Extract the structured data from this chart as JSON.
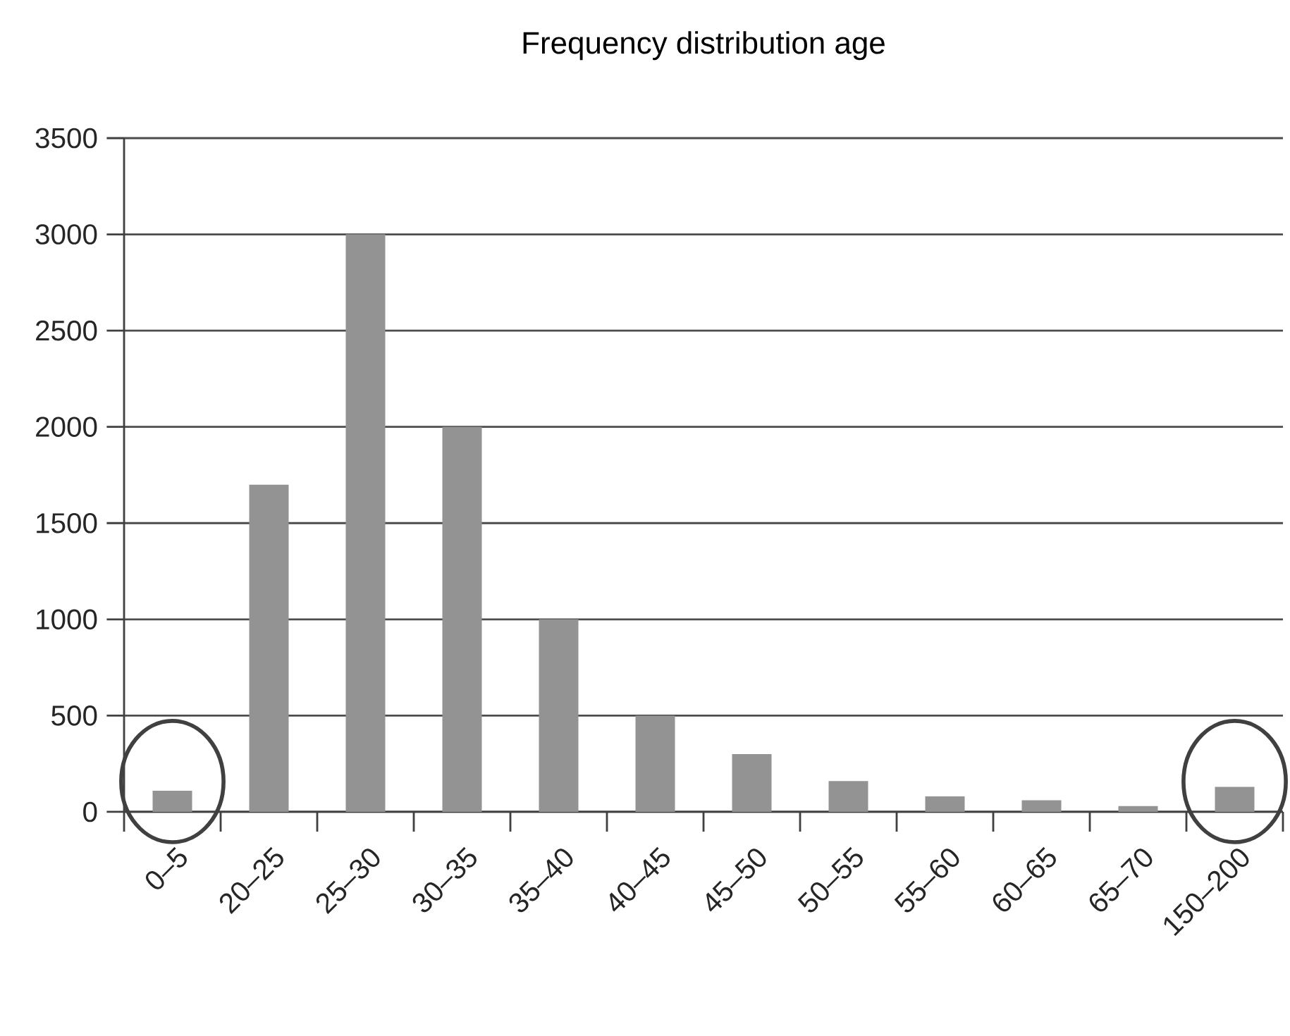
{
  "chart_data": {
    "type": "bar",
    "title": "Frequency distribution age",
    "categories": [
      "0–5",
      "20–25",
      "25–30",
      "30–35",
      "35–40",
      "40–45",
      "45–50",
      "50–55",
      "55–60",
      "60–65",
      "65–70",
      "150–200"
    ],
    "values": [
      110,
      1700,
      3000,
      2000,
      1000,
      500,
      300,
      160,
      80,
      60,
      30,
      130
    ],
    "color": "#939393",
    "ylim": [
      0,
      3500
    ],
    "yticks": [
      0,
      500,
      1000,
      1500,
      2000,
      2500,
      3000,
      3500
    ],
    "grid": "y"
  }
}
